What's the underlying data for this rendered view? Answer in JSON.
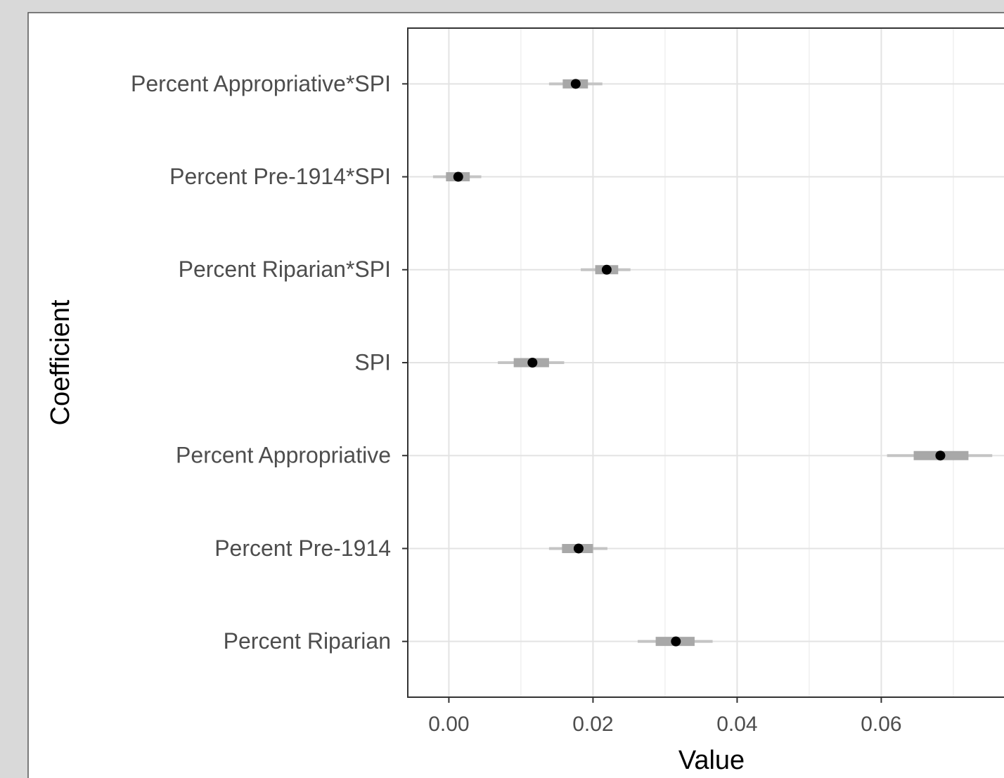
{
  "chart_data": {
    "type": "coefficient",
    "x_label": "Value",
    "y_label": "Coefficient",
    "categories": [
      "Percent Appropriative*SPI",
      "Percent Pre-1914*SPI",
      "Percent Riparian*SPI",
      "SPI",
      "Percent Appropriative",
      "Percent Pre-1914",
      "Percent Riparian"
    ],
    "values": [
      0.0176,
      0.0013,
      0.0219,
      0.0116,
      0.0682,
      0.018,
      0.0315
    ],
    "inner_low": [
      0.0158,
      -0.0004,
      0.0203,
      0.009,
      0.0645,
      0.0157,
      0.0287
    ],
    "inner_high": [
      0.0193,
      0.0029,
      0.0235,
      0.0139,
      0.0721,
      0.02,
      0.0341
    ],
    "outer_low": [
      0.0139,
      -0.0022,
      0.0183,
      0.0068,
      0.0608,
      0.0139,
      0.0262
    ],
    "outer_high": [
      0.0213,
      0.0045,
      0.0252,
      0.016,
      0.0754,
      0.022,
      0.0366
    ],
    "point_color": "#000000",
    "inner_color": "#a8a8a8",
    "outer_color": "#c4c4c4",
    "xlim": [
      -0.0057,
      0.0771
    ],
    "xticks": [
      {
        "value": 0,
        "label": "0.00"
      },
      {
        "value": 0.02,
        "label": "0.02"
      },
      {
        "value": 0.04,
        "label": "0.04"
      },
      {
        "value": 0.06,
        "label": "0.06"
      }
    ],
    "xminor": [
      0.01,
      0.03,
      0.05,
      0.07
    ],
    "grid": true
  }
}
